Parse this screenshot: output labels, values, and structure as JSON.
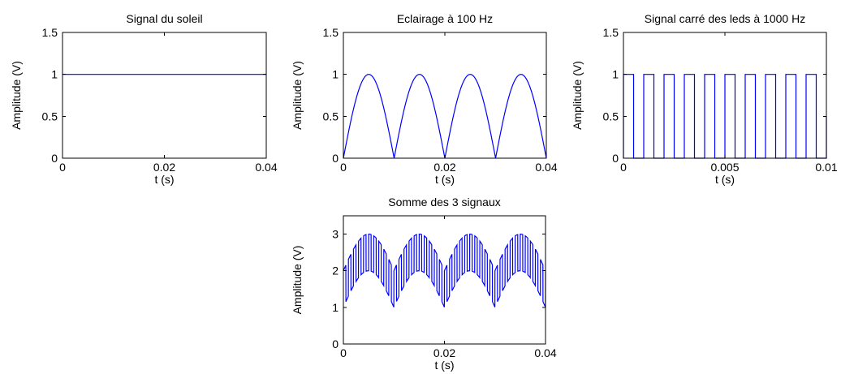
{
  "colors": {
    "series": "#0000ff",
    "axes": "#000000",
    "background": "#ffffff"
  },
  "chart_data": [
    {
      "type": "line",
      "title": "Signal du soleil",
      "xlabel": "t (s)",
      "ylabel": "Amplitude (V)",
      "xlim": [
        0,
        0.04
      ],
      "ylim": [
        0,
        1.5
      ],
      "xticks": [
        "0",
        "0.02",
        "0.04"
      ],
      "yticks": [
        "0",
        "0.5",
        "1",
        "1.5"
      ],
      "grid": false,
      "series": [
        {
          "description": "constant",
          "x": [
            0,
            0.04
          ],
          "y": [
            1,
            1
          ]
        }
      ]
    },
    {
      "type": "line",
      "title": "Eclairage à 100 Hz",
      "xlabel": "t (s)",
      "ylabel": "Amplitude (V)",
      "xlim": [
        0,
        0.04
      ],
      "ylim": [
        0,
        1.5
      ],
      "xticks": [
        "0",
        "0.02",
        "0.04"
      ],
      "yticks": [
        "0",
        "0.5",
        "1",
        "1.5"
      ],
      "grid": false,
      "series": [
        {
          "description": "rectified sine |sin(2π·50·t)|, peaks of 1 at t = 0.005, 0.015, 0.025, 0.035, zeros at t = 0, 0.01, 0.02, 0.03, 0.04",
          "amplitude": 1,
          "frequency_hz": 100
        }
      ]
    },
    {
      "type": "line",
      "title": "Signal carré des leds à 1000 Hz",
      "xlabel": "t (s)",
      "ylabel": "Amplitude (V)",
      "xlim": [
        0,
        0.01
      ],
      "ylim": [
        0,
        1.5
      ],
      "xticks": [
        "0",
        "0.005",
        "0.01"
      ],
      "yticks": [
        "0",
        "0.5",
        "1",
        "1.5"
      ],
      "grid": false,
      "series": [
        {
          "description": "square wave 0/1, 1000 Hz, high during first half of each 1 ms period",
          "amplitude": 1,
          "frequency_hz": 1000,
          "duty_cycle": 0.5
        }
      ]
    },
    {
      "type": "line",
      "title": "Somme des 3 signaux",
      "xlabel": "t (s)",
      "ylabel": "Amplitude (V)",
      "xlim": [
        0,
        0.04
      ],
      "ylim": [
        0,
        3.5
      ],
      "xticks": [
        "0",
        "0.02",
        "0.04"
      ],
      "yticks": [
        "0",
        "1",
        "2",
        "3"
      ],
      "grid": false,
      "series": [
        {
          "description": "sum: 1 + |sin(2π·50·t)| + square wave 1000 Hz; ranges between about 1 and 3",
          "min": 1,
          "max": 3
        }
      ]
    }
  ]
}
